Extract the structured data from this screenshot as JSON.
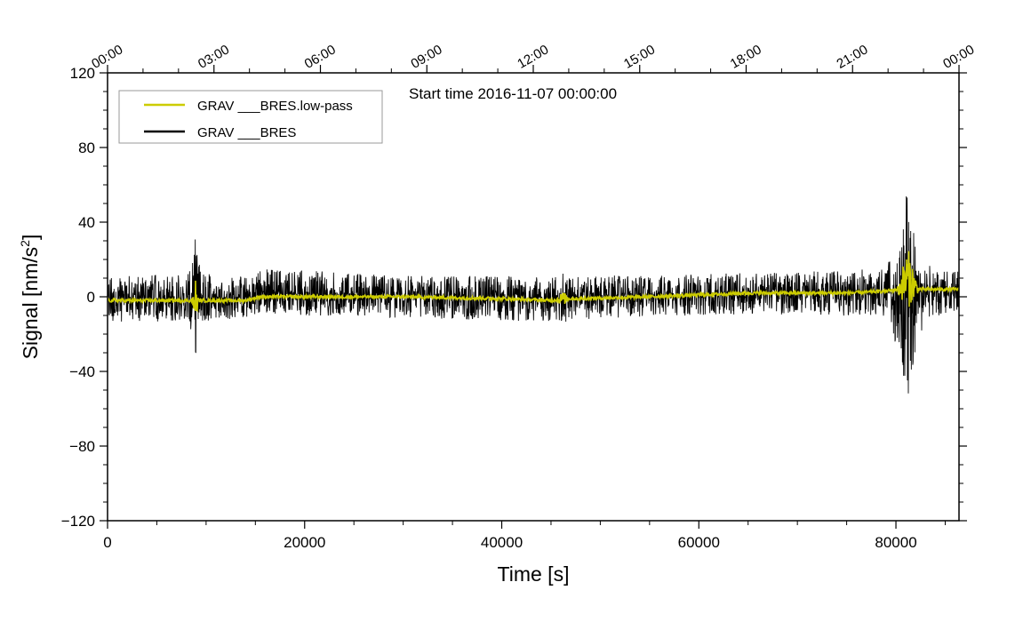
{
  "chart_data": {
    "type": "line",
    "xlabel": "Time [s]",
    "ylabel_main": "Signal [nm/s",
    "ylabel_sup": "2",
    "ylabel_close": "]",
    "xlim": [
      0,
      86400
    ],
    "ylim": [
      -120,
      120
    ],
    "x_ticks": [
      0,
      20000,
      40000,
      60000,
      80000
    ],
    "x_tick_labels": [
      "0",
      "20000",
      "40000",
      "60000",
      "80000"
    ],
    "y_ticks": [
      -120,
      -80,
      -40,
      0,
      40,
      80,
      120
    ],
    "y_tick_labels": [
      "−120",
      "−80",
      "−40",
      "0",
      "40",
      "80",
      "120"
    ],
    "top_ticks": [
      0,
      10800,
      21600,
      32400,
      43200,
      54000,
      64800,
      75600,
      86400
    ],
    "top_tick_labels": [
      "00:00",
      "03:00",
      "06:00",
      "09:00",
      "12:00",
      "15:00",
      "18:00",
      "21:00",
      "00:00"
    ],
    "annotation": "Start time 2016-11-07 00:00:00",
    "legend_position": "top-left",
    "series": [
      {
        "name": "GRAV ___BRES",
        "color": "#000000",
        "style": "noise-envelope",
        "x": [
          0,
          8000,
          8700,
          8900,
          9100,
          9500,
          12000,
          14500,
          15500,
          30000,
          45500,
          46200,
          46800,
          55000,
          70000,
          79000,
          80500,
          81200,
          81800,
          83000,
          86400
        ],
        "upper": [
          12,
          13,
          22,
          33,
          24,
          14,
          12,
          11,
          16,
          12,
          12,
          16,
          12,
          12,
          14,
          16,
          38,
          64,
          40,
          18,
          15
        ],
        "lower": [
          -14,
          -14,
          -25,
          -36,
          -26,
          -15,
          -13,
          -12,
          -10,
          -12,
          -14,
          -16,
          -13,
          -11,
          -10,
          -12,
          -35,
          -60,
          -36,
          -12,
          -9
        ]
      },
      {
        "name": "GRAV ___BRES.low-pass",
        "color": "#cccc00",
        "style": "line",
        "x": [
          0,
          8600,
          8800,
          8900,
          9000,
          9200,
          14000,
          15500,
          20000,
          30000,
          40000,
          45000,
          46200,
          48000,
          55000,
          60000,
          65000,
          70000,
          75000,
          79000,
          80300,
          80800,
          81200,
          81600,
          82200,
          86400
        ],
        "y": [
          -2,
          -2,
          -6,
          3,
          -5,
          -2,
          -2,
          0,
          0,
          0,
          -1,
          -2,
          -1,
          -1,
          0,
          1,
          2,
          2,
          2,
          3,
          4,
          8,
          10,
          8,
          4,
          4
        ],
        "burst_x": [
          8900,
          46200,
          81200
        ],
        "burst_amp": [
          9,
          3,
          16
        ],
        "burst_width": [
          350,
          700,
          1100
        ]
      }
    ]
  }
}
